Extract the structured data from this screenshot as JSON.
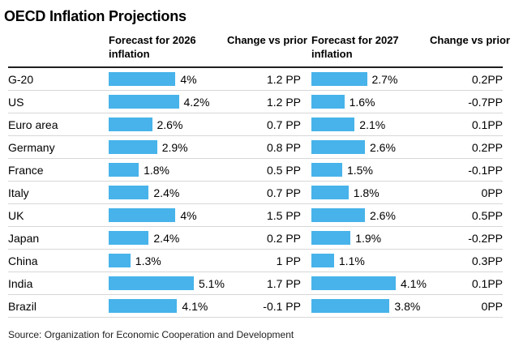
{
  "title": "OECD Inflation Projections",
  "source": "Source: Organization for Economic Cooperation and Development",
  "headers": {
    "forecast_2026": "Forecast for 2026 inflation",
    "change_2026": "Change vs prior",
    "forecast_2027": "Forecast for 2027 inflation",
    "change_2027": "Change vs prior"
  },
  "colors": {
    "bar_blue": "#47b3ea",
    "header_rule": "#1f1f1f",
    "row_divider": "#d7d7d7",
    "text": "#000000"
  },
  "rows": [
    {
      "country": "G-20",
      "f2026": 4.0,
      "f2026_label": "4%",
      "chg2026": "1.2 PP",
      "f2027": 2.7,
      "f2027_label": "2.7%",
      "chg2027": "0.2PP"
    },
    {
      "country": "US",
      "f2026": 4.2,
      "f2026_label": "4.2%",
      "chg2026": "1.2 PP",
      "f2027": 1.6,
      "f2027_label": "1.6%",
      "chg2027": "-0.7PP"
    },
    {
      "country": "Euro area",
      "f2026": 2.6,
      "f2026_label": "2.6%",
      "chg2026": "0.7 PP",
      "f2027": 2.1,
      "f2027_label": "2.1%",
      "chg2027": "0.1PP"
    },
    {
      "country": "Germany",
      "f2026": 2.9,
      "f2026_label": "2.9%",
      "chg2026": "0.8 PP",
      "f2027": 2.6,
      "f2027_label": "2.6%",
      "chg2027": "0.2PP"
    },
    {
      "country": "France",
      "f2026": 1.8,
      "f2026_label": "1.8%",
      "chg2026": "0.5 PP",
      "f2027": 1.5,
      "f2027_label": "1.5%",
      "chg2027": "-0.1PP"
    },
    {
      "country": "Italy",
      "f2026": 2.4,
      "f2026_label": "2.4%",
      "chg2026": "0.7 PP",
      "f2027": 1.8,
      "f2027_label": "1.8%",
      "chg2027": "0PP"
    },
    {
      "country": "UK",
      "f2026": 4.0,
      "f2026_label": "4%",
      "chg2026": "1.5 PP",
      "f2027": 2.6,
      "f2027_label": "2.6%",
      "chg2027": "0.5PP"
    },
    {
      "country": "Japan",
      "f2026": 2.4,
      "f2026_label": "2.4%",
      "chg2026": "0.2 PP",
      "f2027": 1.9,
      "f2027_label": "1.9%",
      "chg2027": "-0.2PP"
    },
    {
      "country": "China",
      "f2026": 1.3,
      "f2026_label": "1.3%",
      "chg2026": "1 PP",
      "f2027": 1.1,
      "f2027_label": "1.1%",
      "chg2027": "0.3PP"
    },
    {
      "country": "India",
      "f2026": 5.1,
      "f2026_label": "5.1%",
      "chg2026": "1.7 PP",
      "f2027": 4.1,
      "f2027_label": "4.1%",
      "chg2027": "0.1PP"
    },
    {
      "country": "Brazil",
      "f2026": 4.1,
      "f2026_label": "4.1%",
      "chg2026": "-0.1 PP",
      "f2027": 3.8,
      "f2027_label": "3.8%",
      "chg2027": "0PP"
    }
  ],
  "chart_data": {
    "type": "bar",
    "orientation": "horizontal",
    "title": "OECD Inflation Projections",
    "categories": [
      "G-20",
      "US",
      "Euro area",
      "Germany",
      "France",
      "Italy",
      "UK",
      "Japan",
      "China",
      "India",
      "Brazil"
    ],
    "series": [
      {
        "name": "Forecast for 2026 inflation",
        "unit": "%",
        "values": [
          4,
          4.2,
          2.6,
          2.9,
          1.8,
          2.4,
          4,
          2.4,
          1.3,
          5.1,
          4.1
        ]
      },
      {
        "name": "Change vs prior (2026)",
        "unit": "PP",
        "values": [
          1.2,
          1.2,
          0.7,
          0.8,
          0.5,
          0.7,
          1.5,
          0.2,
          1,
          1.7,
          -0.1
        ]
      },
      {
        "name": "Forecast for 2027 inflation",
        "unit": "%",
        "values": [
          2.7,
          1.6,
          2.1,
          2.6,
          1.5,
          1.8,
          2.6,
          1.9,
          1.1,
          4.1,
          3.8
        ]
      },
      {
        "name": "Change vs prior (2027)",
        "unit": "PP",
        "values": [
          0.2,
          -0.7,
          0.1,
          0.2,
          -0.1,
          0,
          0.5,
          -0.2,
          0.3,
          0.1,
          0
        ]
      }
    ],
    "xlim": [
      0,
      5.1
    ],
    "grid": false,
    "legend_position": "none",
    "source": "Organization for Economic Cooperation and Development"
  }
}
